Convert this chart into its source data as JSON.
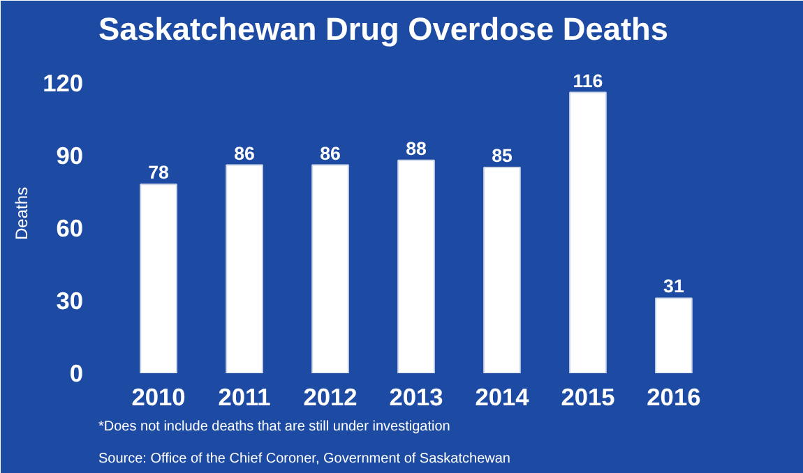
{
  "chart_data": {
    "type": "bar",
    "title": "Saskatchewan Drug Overdose Deaths",
    "ylabel": "Deaths",
    "categories": [
      "2010",
      "2011",
      "2012",
      "2013",
      "2014",
      "2015",
      "2016"
    ],
    "values": [
      78,
      86,
      86,
      88,
      85,
      116,
      31
    ],
    "color": "#ffffff",
    "ylim": [
      0,
      132
    ],
    "yticks": [
      0,
      30,
      60,
      90,
      120
    ],
    "grid": false,
    "data_labels": true,
    "annotations": [
      "*Does not include deaths that are still under investigation",
      "Source: Office of the Chief Coroner, Government of Saskatchewan"
    ]
  }
}
